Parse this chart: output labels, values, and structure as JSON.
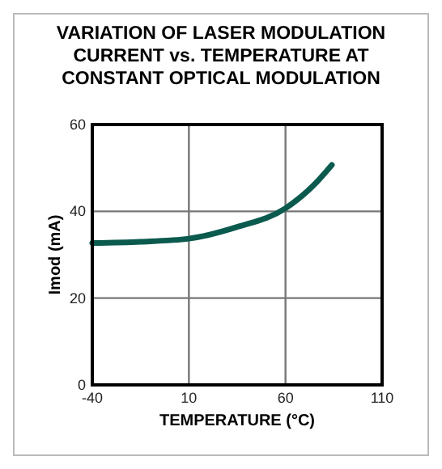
{
  "chart_data": {
    "type": "line",
    "title": "VARIATION OF LASER MODULATION CURRENT vs. TEMPERATURE AT CONSTANT OPTICAL MODULATION",
    "xlabel": "TEMPERATURE (°C)",
    "ylabel": "Imod (mA)",
    "x": [
      -40,
      -15,
      10,
      35,
      60,
      75,
      84
    ],
    "series": [
      {
        "color": "#0b5a4e",
        "values": [
          32.7,
          33.0,
          33.7,
          36.4,
          40.7,
          46.2,
          50.7
        ]
      }
    ],
    "xlim": [
      -40,
      110
    ],
    "xticks": [
      -40,
      10,
      60,
      110
    ],
    "ylim": [
      0,
      60
    ],
    "yticks": [
      0,
      20,
      40,
      60
    ],
    "grid": true,
    "marker": "none",
    "line_style": "solid"
  }
}
